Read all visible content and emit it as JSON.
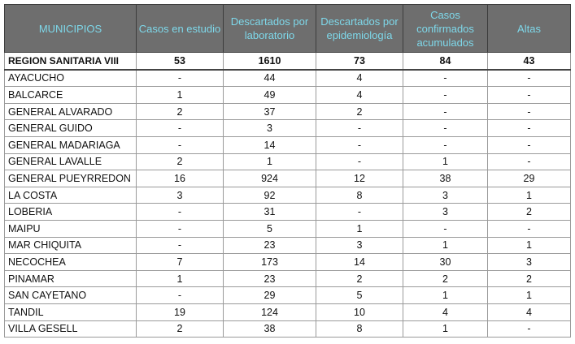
{
  "table": {
    "headers": [
      "MUNICIPIOS",
      "Casos en estudio",
      "Descartados por laboratorio",
      "Descartados por epidemiología",
      "Casos confirmados acumulados",
      "Altas"
    ],
    "total": [
      "REGION SANITARIA VIII",
      "53",
      "1610",
      "73",
      "84",
      "43"
    ],
    "rows": [
      [
        "AYACUCHO",
        "-",
        "44",
        "4",
        "-",
        "-"
      ],
      [
        "BALCARCE",
        "1",
        "49",
        "4",
        "-",
        "-"
      ],
      [
        "GENERAL ALVARADO",
        "2",
        "37",
        "2",
        "-",
        "-"
      ],
      [
        "GENERAL GUIDO",
        "-",
        "3",
        "-",
        "-",
        "-"
      ],
      [
        "GENERAL MADARIAGA",
        "-",
        "14",
        "-",
        "-",
        "-"
      ],
      [
        "GENERAL LAVALLE",
        "2",
        "1",
        "-",
        "1",
        "-"
      ],
      [
        "GENERAL PUEYRREDON",
        "16",
        "924",
        "12",
        "38",
        "29"
      ],
      [
        "LA COSTA",
        "3",
        "92",
        "8",
        "3",
        "1"
      ],
      [
        "LOBERIA",
        "-",
        "31",
        "-",
        "3",
        "2"
      ],
      [
        "MAIPU",
        "-",
        "5",
        "1",
        "-",
        "-"
      ],
      [
        "MAR CHIQUITA",
        "-",
        "23",
        "3",
        "1",
        "1"
      ],
      [
        "NECOCHEA",
        "7",
        "173",
        "14",
        "30",
        "3"
      ],
      [
        "PINAMAR",
        "1",
        "23",
        "2",
        "2",
        "2"
      ],
      [
        "SAN CAYETANO",
        "-",
        "29",
        "5",
        "1",
        "1"
      ],
      [
        "TANDIL",
        "19",
        "124",
        "10",
        "4",
        "4"
      ],
      [
        "VILLA GESELL",
        "2",
        "38",
        "8",
        "1",
        "-"
      ]
    ]
  }
}
